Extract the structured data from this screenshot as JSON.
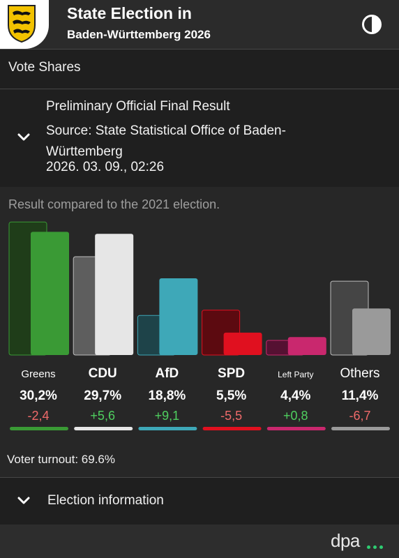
{
  "header": {
    "title_line1": "State Election in",
    "title_line2": "Baden-Württemberg 2026"
  },
  "vote_shares_label": "Vote Shares",
  "result_info": {
    "line1": "Preliminary Official Final Result",
    "line2": "Source: State Statistical Office of Baden-Württemberg",
    "line3": "2026. 03. 09., 02:26"
  },
  "compare_text": "Result compared to the 2021 election.",
  "chart_data": {
    "type": "bar",
    "categories": [
      "Greens",
      "CDU",
      "AfD",
      "SPD",
      "Left Party",
      "Others"
    ],
    "series": [
      {
        "values": [
          32.6,
          24.1,
          9.7,
          11.0,
          3.6,
          18.1
        ]
      },
      {
        "values": [
          30.2,
          29.7,
          18.8,
          5.5,
          4.4,
          11.4
        ]
      }
    ],
    "value_labels": [
      "30,2%",
      "29,7%",
      "18,8%",
      "5,5%",
      "4,4%",
      "11,4%"
    ],
    "change_labels": [
      "-2,4",
      "+5,6",
      "+9,1",
      "-5,5",
      "+0,8",
      "-6,7"
    ],
    "colors": [
      "#3a9a35",
      "#e6e6e6",
      "#3ea8b8",
      "#e0101f",
      "#c9286e",
      "#9a9a9a"
    ],
    "old_colors": [
      "#1f3d19",
      "#5e5e5e",
      "#1e4349",
      "#5c0a10",
      "#551132",
      "#454545"
    ],
    "old_borders": [
      "#3a9a35",
      "#bdbdbd",
      "#3ea8b8",
      "#e0101f",
      "#c9286e",
      "#bdbdbd"
    ]
  },
  "turnout": "Voter turnout: 69.6%",
  "election_info_label": "Election information",
  "footer": {
    "brand": "dpa"
  }
}
